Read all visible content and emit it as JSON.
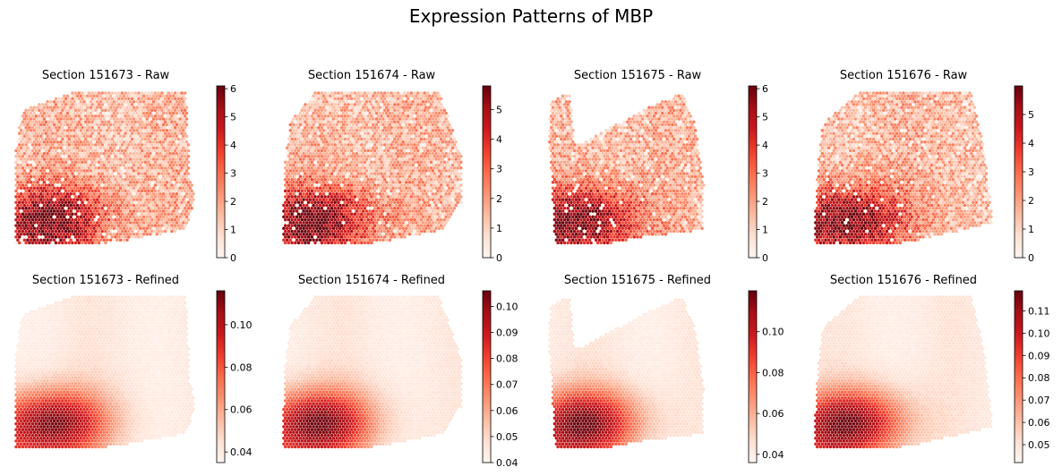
{
  "title": "Expression Patterns of MBP",
  "colormap": {
    "name": "Reds",
    "stops": [
      "#fff5f0",
      "#fee0d2",
      "#fcbba1",
      "#fc9272",
      "#fb6a4a",
      "#ef3b2c",
      "#cb181d",
      "#a50f15",
      "#67000d"
    ]
  },
  "chart_data": [
    {
      "type": "heatmap",
      "title": "Section 151673 - Raw",
      "section": "151673",
      "kind": "Raw",
      "vmin": 0,
      "vmax": 6.1,
      "colorbar_ticks": [
        "0",
        "1",
        "2",
        "3",
        "4",
        "5",
        "6"
      ],
      "colorbar_tick_values": [
        0,
        1,
        2,
        3,
        4,
        5,
        6
      ]
    },
    {
      "type": "heatmap",
      "title": "Section 151674 - Raw",
      "section": "151674",
      "kind": "Raw",
      "vmin": 0,
      "vmax": 5.8,
      "colorbar_ticks": [
        "0",
        "1",
        "2",
        "3",
        "4",
        "5"
      ],
      "colorbar_tick_values": [
        0,
        1,
        2,
        3,
        4,
        5
      ]
    },
    {
      "type": "heatmap",
      "title": "Section 151675 - Raw",
      "section": "151675",
      "kind": "Raw",
      "vmin": 0,
      "vmax": 6.1,
      "colorbar_ticks": [
        "0",
        "1",
        "2",
        "3",
        "4",
        "5",
        "6"
      ],
      "colorbar_tick_values": [
        0,
        1,
        2,
        3,
        4,
        5,
        6
      ]
    },
    {
      "type": "heatmap",
      "title": "Section 151676 - Raw",
      "section": "151676",
      "kind": "Raw",
      "vmin": 0,
      "vmax": 6.0,
      "colorbar_ticks": [
        "0",
        "1",
        "2",
        "3",
        "4",
        "5"
      ],
      "colorbar_tick_values": [
        0,
        1,
        2,
        3,
        4,
        5
      ]
    },
    {
      "type": "heatmap",
      "title": "Section 151673 - Refined",
      "section": "151673",
      "kind": "Refined",
      "vmin": 0.035,
      "vmax": 0.116,
      "colorbar_ticks": [
        "0.04",
        "0.06",
        "0.08",
        "0.10"
      ],
      "colorbar_tick_values": [
        0.04,
        0.06,
        0.08,
        0.1
      ]
    },
    {
      "type": "heatmap",
      "title": "Section 151674 - Refined",
      "section": "151674",
      "kind": "Refined",
      "vmin": 0.04,
      "vmax": 0.106,
      "colorbar_ticks": [
        "0.04",
        "0.05",
        "0.06",
        "0.07",
        "0.08",
        "0.09",
        "0.10"
      ],
      "colorbar_tick_values": [
        0.04,
        0.05,
        0.06,
        0.07,
        0.08,
        0.09,
        0.1
      ]
    },
    {
      "type": "heatmap",
      "title": "Section 151675 - Refined",
      "section": "151675",
      "kind": "Refined",
      "vmin": 0.036,
      "vmax": 0.12,
      "colorbar_ticks": [
        "0.04",
        "0.06",
        "0.08",
        "0.10"
      ],
      "colorbar_tick_values": [
        0.04,
        0.06,
        0.08,
        0.1
      ]
    },
    {
      "type": "heatmap",
      "title": "Section 151676 - Refined",
      "section": "151676",
      "kind": "Refined",
      "vmin": 0.042,
      "vmax": 0.119,
      "colorbar_ticks": [
        "0.05",
        "0.06",
        "0.07",
        "0.08",
        "0.09",
        "0.10",
        "0.11"
      ],
      "colorbar_tick_values": [
        0.05,
        0.06,
        0.07,
        0.08,
        0.09,
        0.1,
        0.11
      ]
    }
  ]
}
